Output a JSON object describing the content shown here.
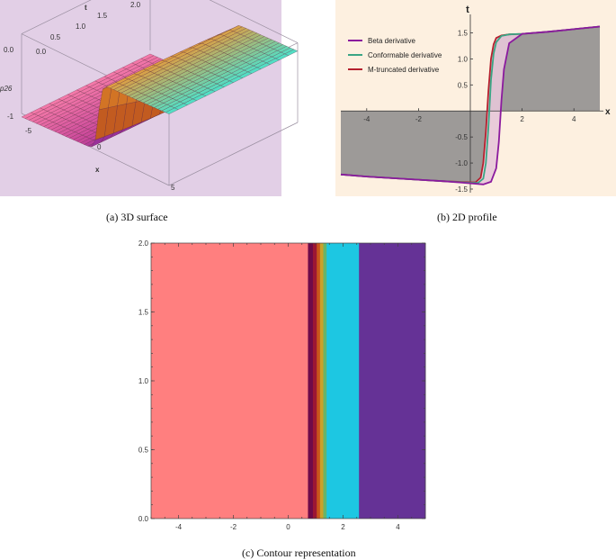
{
  "captions": {
    "a": "(a)  3D surface",
    "b": "(b)  2D profile",
    "c": "(c)  Contour representation"
  },
  "chart_data": [
    {
      "type": "surface",
      "panel": "a",
      "xlabel": "x",
      "ylabel": "t",
      "zlabel": "p26",
      "x_ticks": [
        "-5",
        "0",
        "5"
      ],
      "t_ticks": [
        "0.0",
        "0.5",
        "1.0",
        "1.5",
        "2.0"
      ],
      "z_ticks": [
        "0.0",
        "-1"
      ],
      "xlim": [
        -5,
        5
      ],
      "tlim": [
        0,
        2
      ],
      "z_low": -1.35,
      "z_high": 1.55,
      "front_step_x": 0.2
    },
    {
      "type": "line",
      "panel": "b",
      "xlabel": "x",
      "ylabel": "t",
      "xlim": [
        -5,
        5
      ],
      "ylim": [
        -1.5,
        1.75
      ],
      "x_ticks": [
        -4,
        -2,
        2,
        4
      ],
      "y_ticks": [
        -1.5,
        -1.0,
        -0.5,
        0.5,
        1.0,
        1.5
      ],
      "y_tick_labels": [
        "-1.5",
        "-1.0",
        "-0.5",
        "0.5",
        "1.0",
        "1.5"
      ],
      "legend": {
        "placement": "top-left"
      },
      "series": [
        {
          "name": "Beta derivative",
          "color": "#8b1a9e",
          "x": [
            -5,
            -4,
            -3,
            -2,
            -1,
            0,
            0.5,
            0.8,
            1.0,
            1.1,
            1.2,
            1.3,
            1.5,
            2,
            3,
            4,
            5
          ],
          "y": [
            -1.22,
            -1.26,
            -1.29,
            -1.32,
            -1.35,
            -1.39,
            -1.41,
            -1.36,
            -1.1,
            -0.6,
            0.2,
            0.8,
            1.3,
            1.48,
            1.52,
            1.57,
            1.62
          ]
        },
        {
          "name": "Conformable derivative",
          "color": "#3aa584",
          "x": [
            -5,
            -4,
            -3,
            -2,
            -1,
            0,
            0.3,
            0.5,
            0.6,
            0.7,
            0.8,
            0.9,
            1.0,
            1.2,
            1.5,
            2,
            3,
            4,
            5
          ],
          "y": [
            -1.22,
            -1.26,
            -1.29,
            -1.32,
            -1.35,
            -1.38,
            -1.38,
            -1.3,
            -1.0,
            -0.3,
            0.6,
            1.1,
            1.32,
            1.44,
            1.47,
            1.48,
            1.52,
            1.57,
            1.62
          ]
        },
        {
          "name": "M-truncated derivative",
          "color": "#b5202e",
          "x": [
            -5,
            -4,
            -3,
            -2,
            -1,
            0,
            0.2,
            0.4,
            0.5,
            0.6,
            0.7,
            0.8,
            0.9,
            1.0,
            1.2,
            1.5,
            2,
            3,
            4,
            5
          ],
          "y": [
            -1.22,
            -1.26,
            -1.29,
            -1.32,
            -1.35,
            -1.37,
            -1.37,
            -1.28,
            -1.0,
            -0.4,
            0.4,
            1.0,
            1.28,
            1.4,
            1.45,
            1.47,
            1.48,
            1.52,
            1.57,
            1.62
          ]
        }
      ]
    },
    {
      "type": "heatmap",
      "panel": "c",
      "xlim": [
        -5,
        5
      ],
      "ylim": [
        0,
        2
      ],
      "x_ticks": [
        -4,
        -2,
        0,
        2,
        4
      ],
      "y_ticks": [
        0.0,
        0.5,
        1.0,
        1.5,
        2.0
      ],
      "y_tick_labels": [
        "0.0",
        "0.5",
        "1.0",
        "1.5",
        "2.0"
      ],
      "bands": [
        {
          "x0": -5.0,
          "x1": 0.72,
          "color": "#ff7f7f"
        },
        {
          "x0": 0.72,
          "x1": 0.9,
          "color": "#6e0a49"
        },
        {
          "x0": 0.9,
          "x1": 1.04,
          "color": "#9c1634"
        },
        {
          "x0": 1.04,
          "x1": 1.16,
          "color": "#c8551c"
        },
        {
          "x0": 1.16,
          "x1": 1.28,
          "color": "#c9a12a"
        },
        {
          "x0": 1.28,
          "x1": 1.4,
          "color": "#65b56a"
        },
        {
          "x0": 1.4,
          "x1": 2.58,
          "color": "#1dc7e2"
        },
        {
          "x0": 2.58,
          "x1": 5.0,
          "color": "#653296"
        }
      ]
    }
  ]
}
